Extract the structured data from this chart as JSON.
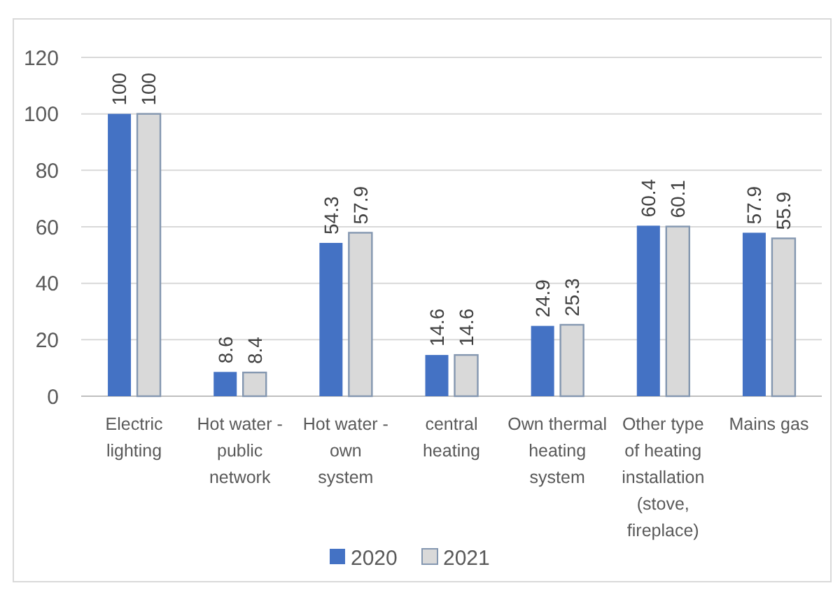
{
  "chart_data": {
    "type": "bar",
    "categories": [
      "Electric\nlighting",
      "Hot water -\npublic\nnetwork",
      "Hot water -\nown\nsystem",
      "central\nheating",
      "Own thermal\nheating\nsystem",
      "Other type\nof heating\ninstallation\n(stove,\nfireplace)",
      "Mains gas"
    ],
    "series": [
      {
        "name": "2020",
        "color": "#4472c4",
        "values": [
          100,
          8.6,
          54.3,
          14.6,
          24.9,
          60.4,
          57.9
        ]
      },
      {
        "name": "2021",
        "color": "#d9d9d9",
        "values": [
          100,
          8.4,
          57.9,
          14.6,
          25.3,
          60.1,
          55.9
        ]
      }
    ],
    "ylim": [
      0,
      120
    ],
    "yticks": [
      0,
      20,
      40,
      60,
      80,
      100,
      120
    ],
    "grid": "y",
    "legend": "bottom",
    "data_labels": true
  }
}
